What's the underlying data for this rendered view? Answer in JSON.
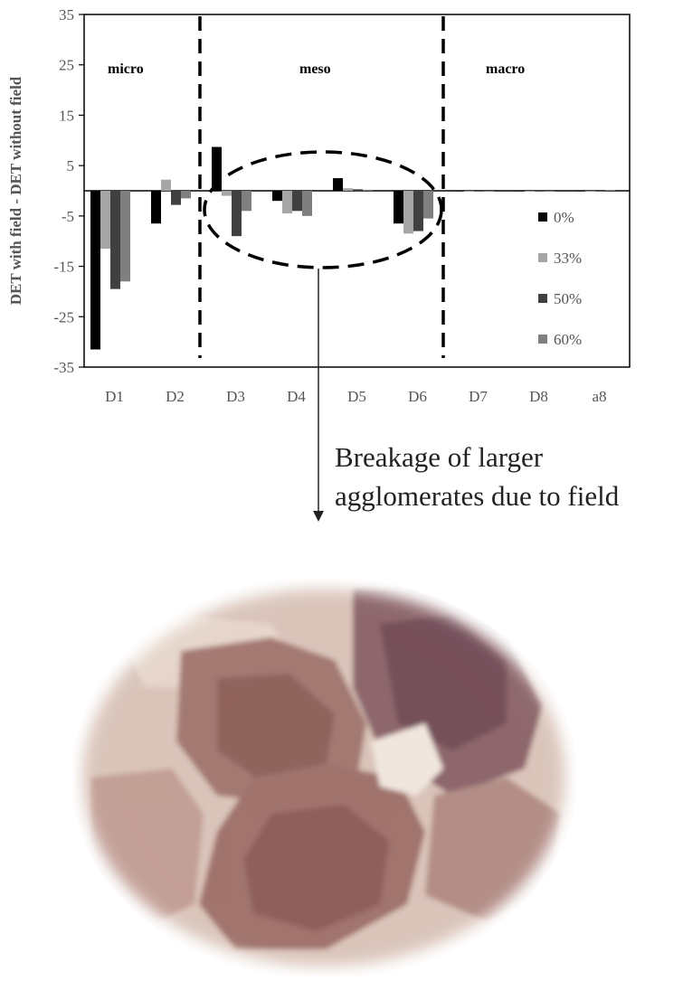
{
  "chart_data": {
    "type": "bar",
    "ylabel": "DET with field - DET without field",
    "xlabel": "",
    "ylim": [
      -35,
      35
    ],
    "yticks": [
      -35,
      -25,
      -15,
      -5,
      5,
      15,
      25,
      35
    ],
    "categories": [
      "D1",
      "D2",
      "D3",
      "D4",
      "D5",
      "D6",
      "D7",
      "D8",
      "a8"
    ],
    "series": [
      {
        "name": "0%",
        "color": "#000000",
        "values": [
          -31.5,
          -6.5,
          8.7,
          -2.0,
          2.5,
          -6.5,
          0,
          0,
          0
        ]
      },
      {
        "name": "33%",
        "color": "#a6a6a6",
        "values": [
          -11.5,
          2.2,
          -1.0,
          -4.5,
          0.5,
          -8.5,
          0,
          0,
          0
        ]
      },
      {
        "name": "50%",
        "color": "#404040",
        "values": [
          -19.5,
          -2.8,
          -9.0,
          -4.0,
          0.3,
          -8.0,
          0,
          0,
          0
        ]
      },
      {
        "name": "60%",
        "color": "#7f7f7f",
        "values": [
          -18.0,
          -1.5,
          -4.0,
          -5.0,
          0.2,
          -5.5,
          0,
          0,
          0.1
        ]
      }
    ],
    "regions": [
      {
        "label": "micro"
      },
      {
        "label": "meso"
      },
      {
        "label": "macro"
      }
    ],
    "legend_position": "right",
    "grid": false
  },
  "annotation": {
    "line1": "Breakage of larger",
    "line2": "agglomerates due to field"
  },
  "photo": {
    "subject": "microscope image of agglomerated particles"
  }
}
